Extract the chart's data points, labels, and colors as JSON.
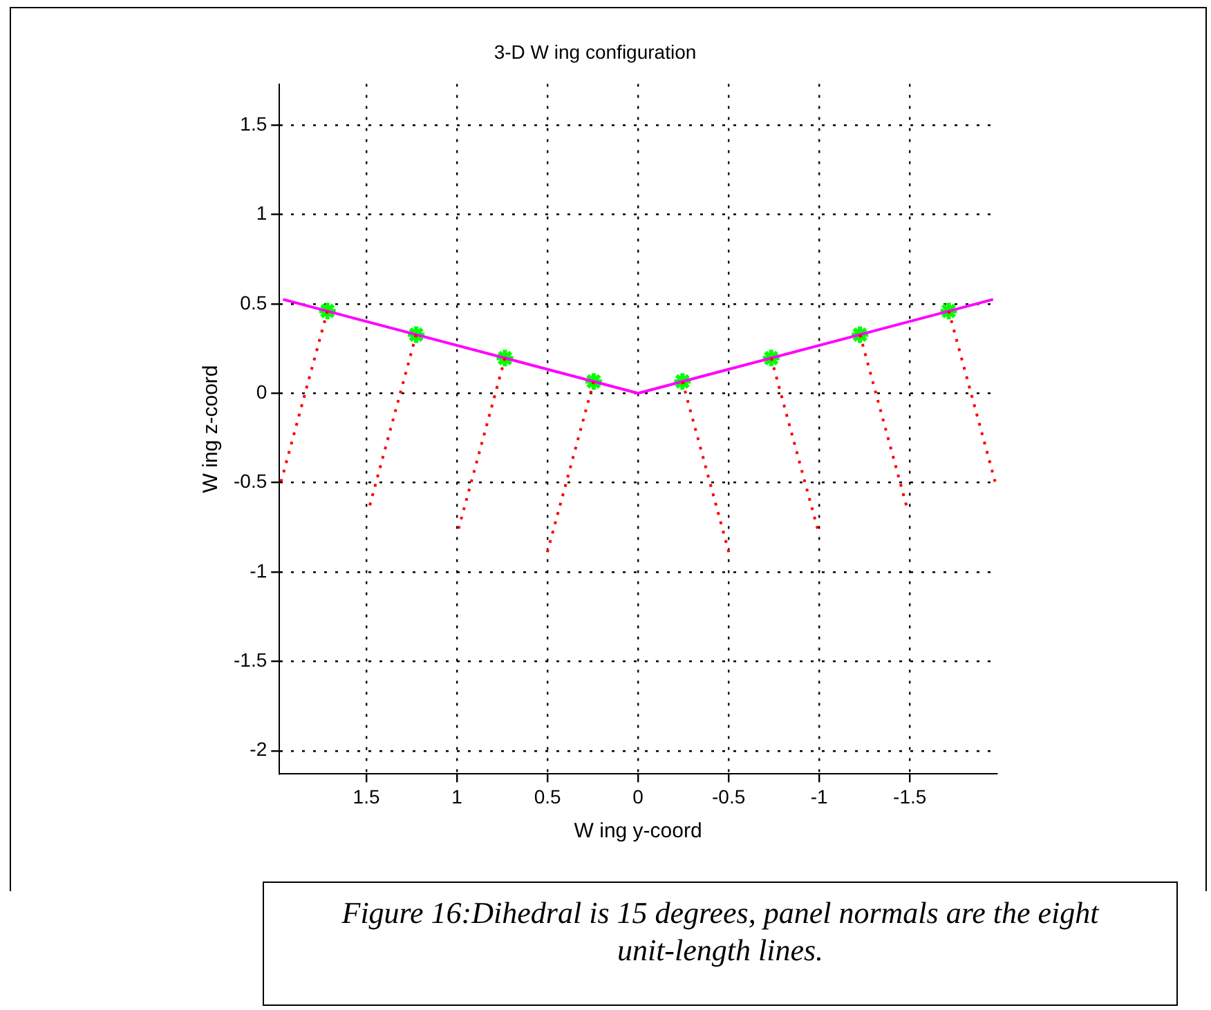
{
  "chart_data": {
    "type": "line",
    "title": "3-D W ing configuration",
    "xlabel": "W ing y-coord",
    "ylabel": "W ing z-coord",
    "xlim": [
      1.98,
      -1.98
    ],
    "ylim": [
      -2.13,
      1.73
    ],
    "xticks": [
      1.5,
      1,
      0.5,
      0,
      -0.5,
      -1,
      -1.5
    ],
    "yticks": [
      -2,
      -1.5,
      -1,
      -0.5,
      0,
      0.5,
      1,
      1.5
    ],
    "grid": true,
    "legend": false,
    "series": [
      {
        "color": "#ff0000",
        "line_style": "dotted",
        "marker": "none",
        "x": [
          1.715,
          1.974
        ],
        "values": [
          0.46,
          -0.506
        ]
      },
      {
        "color": "#ff0000",
        "line_style": "dotted",
        "marker": "none",
        "x": [
          1.225,
          1.484
        ],
        "values": [
          0.328,
          -0.638
        ]
      },
      {
        "color": "#ff0000",
        "line_style": "dotted",
        "marker": "none",
        "x": [
          0.735,
          0.994
        ],
        "values": [
          0.197,
          -0.769
        ]
      },
      {
        "color": "#ff0000",
        "line_style": "dotted",
        "marker": "none",
        "x": [
          0.245,
          0.504
        ],
        "values": [
          0.066,
          -0.9
        ]
      },
      {
        "color": "#ff0000",
        "line_style": "dotted",
        "marker": "none",
        "x": [
          -0.245,
          -0.504
        ],
        "values": [
          0.066,
          -0.9
        ]
      },
      {
        "color": "#ff0000",
        "line_style": "dotted",
        "marker": "none",
        "x": [
          -0.735,
          -0.994
        ],
        "values": [
          0.197,
          -0.769
        ]
      },
      {
        "color": "#ff0000",
        "line_style": "dotted",
        "marker": "none",
        "x": [
          -1.225,
          -1.484
        ],
        "values": [
          0.328,
          -0.638
        ]
      },
      {
        "color": "#ff0000",
        "line_style": "dotted",
        "marker": "none",
        "x": [
          -1.715,
          -1.974
        ],
        "values": [
          0.46,
          -0.506
        ]
      },
      {
        "color": "#ff00ff",
        "line_style": "solid",
        "marker": "none",
        "x": [
          1.96,
          0,
          -1.96
        ],
        "values": [
          0.525,
          0,
          0.525
        ]
      },
      {
        "type": "scatter",
        "color": "#00ff00",
        "marker": "cross",
        "x": [
          1.715,
          1.225,
          0.735,
          0.245,
          -0.245,
          -0.735,
          -1.225,
          -1.715
        ],
        "values": [
          0.46,
          0.328,
          0.197,
          0.066,
          0.066,
          0.197,
          0.328,
          0.46
        ]
      }
    ],
    "annotations": [
      "Figure 16:Dihedral is 15 degrees, panel normals are the eight unit-length lines."
    ]
  }
}
